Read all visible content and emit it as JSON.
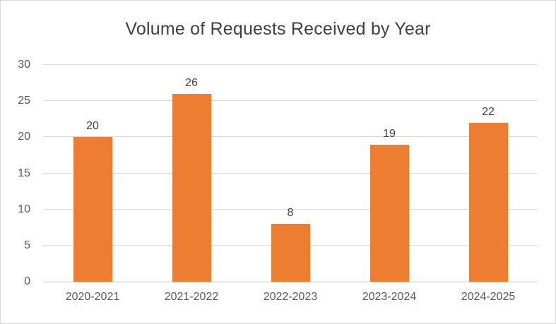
{
  "chart_data": {
    "type": "bar",
    "title": "Volume of Requests Received by Year",
    "categories": [
      "2020-2021",
      "2021-2022",
      "2022-2023",
      "2023-2024",
      "2024-2025"
    ],
    "values": [
      20,
      26,
      8,
      19,
      22
    ],
    "xlabel": "",
    "ylabel": "",
    "ylim": [
      0,
      30
    ],
    "yticks": [
      0,
      5,
      10,
      15,
      20,
      25,
      30
    ],
    "grid": true,
    "legend": "none",
    "colors": {
      "bar": "#ed7d31",
      "title_text": "#404040",
      "value_label_text": "#404040",
      "tick_label_text": "#595959",
      "gridline": "#d9d9d9",
      "axis_line": "#bfbfbf",
      "border": "#d9d9d9",
      "background": "#ffffff"
    }
  }
}
